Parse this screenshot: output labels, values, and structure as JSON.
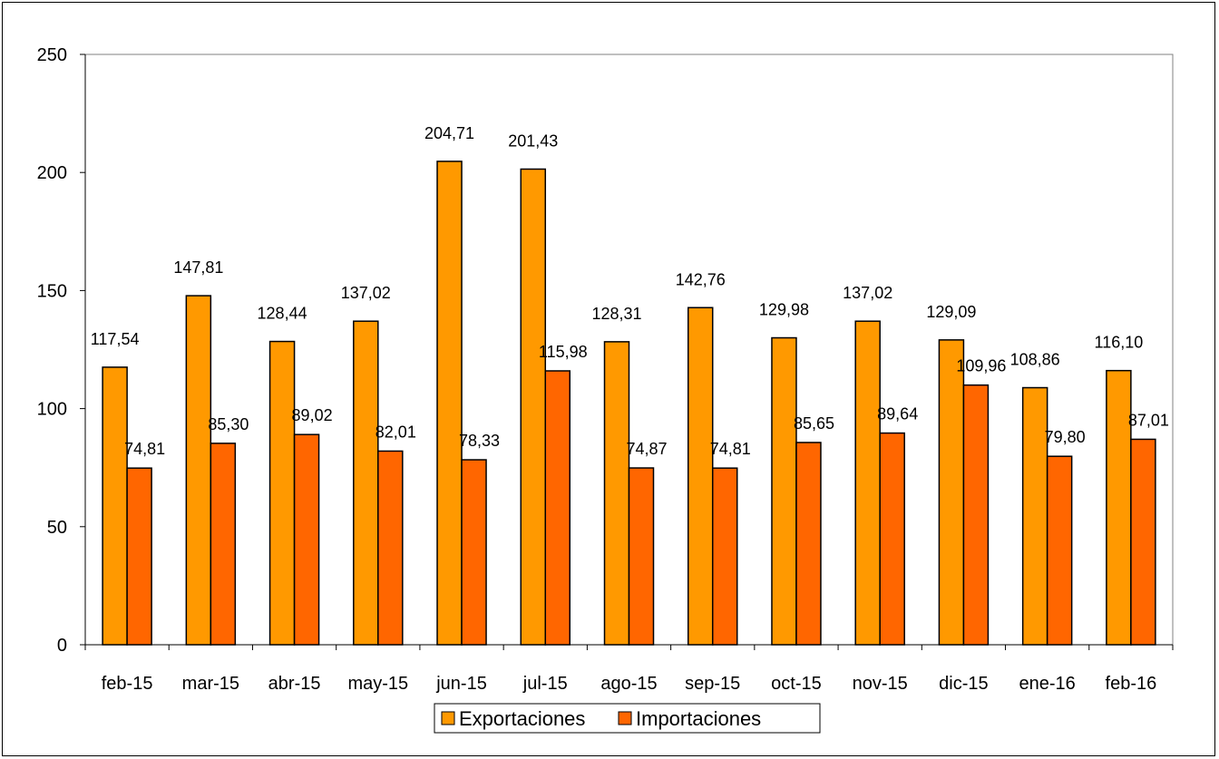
{
  "chart_data": {
    "type": "bar",
    "categories": [
      "feb-15",
      "mar-15",
      "abr-15",
      "may-15",
      "jun-15",
      "jul-15",
      "ago-15",
      "sep-15",
      "oct-15",
      "nov-15",
      "dic-15",
      "ene-16",
      "feb-16"
    ],
    "series": [
      {
        "name": "Exportaciones",
        "color": "#FF9900",
        "values": [
          117.54,
          147.81,
          128.44,
          137.02,
          204.71,
          201.43,
          128.31,
          142.76,
          129.98,
          137.02,
          129.09,
          108.86,
          116.1
        ],
        "labels": [
          "117,54",
          "147,81",
          "128,44",
          "137,02",
          "204,71",
          "201,43",
          "128,31",
          "142,76",
          "129,98",
          "137,02",
          "129,09",
          "108,86",
          "116,10"
        ]
      },
      {
        "name": "Importaciones",
        "color": "#FF6600",
        "values": [
          74.81,
          85.3,
          89.02,
          82.01,
          78.33,
          115.98,
          74.87,
          74.81,
          85.65,
          89.64,
          109.96,
          79.8,
          87.01
        ],
        "labels": [
          "74,81",
          "85,30",
          "89,02",
          "82,01",
          "78,33",
          "115,98",
          "74,87",
          "74,81",
          "85,65",
          "89,64",
          "109,96",
          "79,80",
          "87,01"
        ]
      }
    ],
    "ylim": [
      0,
      250
    ],
    "yticks": [
      0,
      50,
      100,
      150,
      200,
      250
    ],
    "grid": false,
    "legend": "bottom-center"
  }
}
